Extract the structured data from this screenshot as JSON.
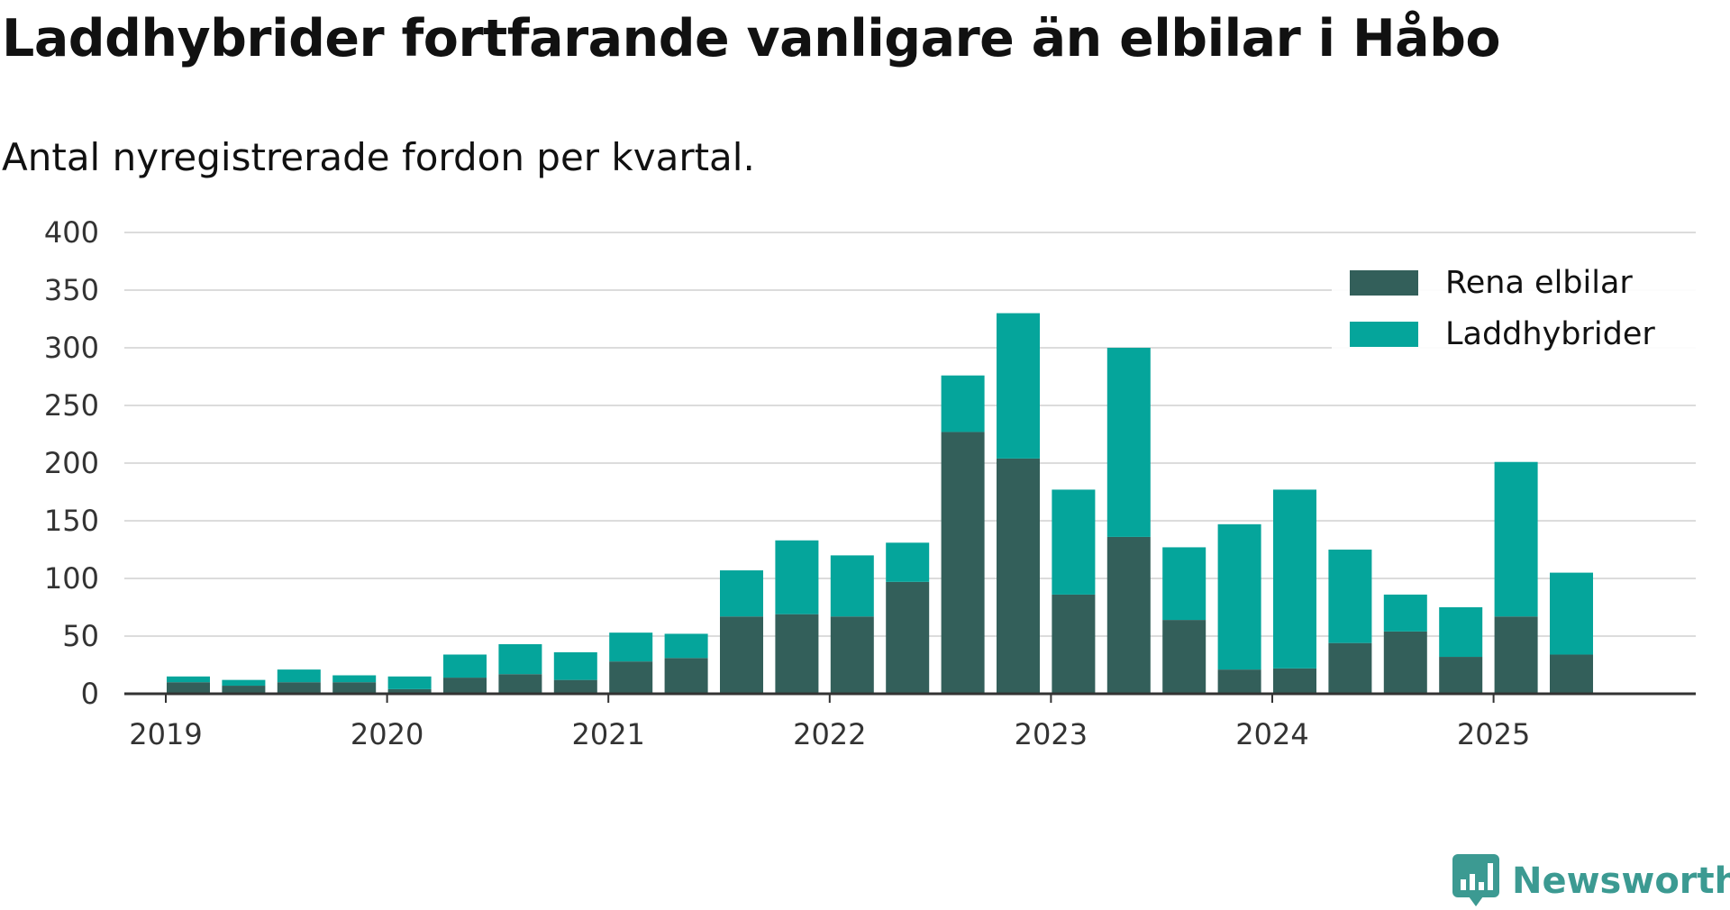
{
  "title": "Laddhybrider fortfarande vanligare än elbilar i Håbo",
  "subtitle": "Antal nyregistrerade fordon per kvartal.",
  "brand": {
    "name": "Newsworthy",
    "color": "#3c9a92"
  },
  "chart_data": {
    "type": "bar",
    "stacked": true,
    "x_ticks": [
      "2019",
      "2020",
      "2021",
      "2022",
      "2023",
      "2024",
      "2025"
    ],
    "y_ticks": [
      "0",
      "50",
      "100",
      "150",
      "200",
      "250",
      "300",
      "350",
      "400"
    ],
    "ylim": [
      0,
      400
    ],
    "legend_position": "top-right",
    "grid": true,
    "quarters": [
      "2019 Q2",
      "2019 Q3",
      "2019 Q4",
      "2020 Q1",
      "2020 Q2",
      "2020 Q3",
      "2020 Q4",
      "2021 Q1",
      "2021 Q2",
      "2021 Q3",
      "2021 Q4",
      "2022 Q1",
      "2022 Q2",
      "2022 Q3",
      "2022 Q4",
      "2023 Q1",
      "2023 Q2",
      "2023 Q3",
      "2023 Q4",
      "2024 Q1",
      "2024 Q2",
      "2024 Q3",
      "2024 Q4",
      "2025 Q1",
      "2025 Q2",
      "2025 Q3"
    ],
    "series": [
      {
        "name": "Rena elbilar",
        "color": "#335f5a",
        "values": [
          10,
          7,
          10,
          10,
          4,
          14,
          17,
          12,
          28,
          31,
          67,
          69,
          67,
          97,
          227,
          204,
          86,
          136,
          64,
          21,
          22,
          44,
          54,
          32,
          67,
          34
        ]
      },
      {
        "name": "Laddhybrider",
        "color": "#05a59b",
        "values": [
          5,
          5,
          11,
          6,
          11,
          20,
          26,
          24,
          25,
          21,
          40,
          64,
          53,
          34,
          49,
          126,
          91,
          164,
          63,
          126,
          155,
          81,
          32,
          43,
          134,
          71
        ]
      }
    ]
  }
}
